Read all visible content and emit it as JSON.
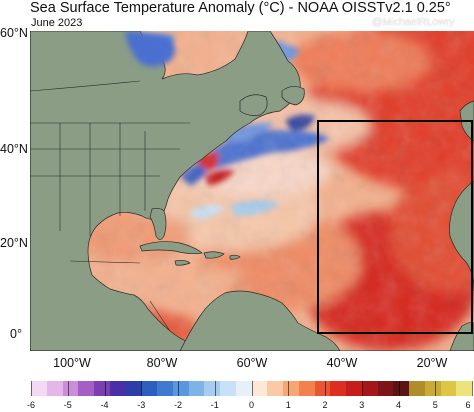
{
  "title": "Sea Surface Temperature Anomaly (°C) - NOAA OISSTv2.1 0.25°",
  "subtitle": "June 2023",
  "credit": "@MichaelRLowry",
  "lat_labels": [
    "60°N",
    "40°N",
    "20°N",
    "0°"
  ],
  "lon_labels": [
    "100°W",
    "80°W",
    "60°W",
    "40°W",
    "20°W"
  ],
  "colorbar": {
    "labels": [
      "-6",
      "-5",
      "-4",
      "-3",
      "-2",
      "-1",
      "0",
      "1",
      "2",
      "3",
      "4",
      "5",
      "6"
    ],
    "colors": [
      "#f3d9f3",
      "#e4b6ea",
      "#cc8ed9",
      "#a55fc4",
      "#7a3fb0",
      "#4a2fa6",
      "#2c3fa8",
      "#2f5ec1",
      "#3f79d0",
      "#5b97dc",
      "#7eb3e6",
      "#a6cdef",
      "#c9e1f6",
      "#e6f0fa",
      "#fde8d6",
      "#fbc9a3",
      "#f7a775",
      "#f28150",
      "#ea5633",
      "#dc2f22",
      "#c51d1a",
      "#a5161a",
      "#7d1417",
      "#5c1314",
      "#b08c2a",
      "#c9aa34",
      "#ddc646",
      "#ece47a"
    ]
  },
  "highlight_box": {
    "label": "",
    "lon_west": -46,
    "lon_east": -10,
    "lat_south": 1,
    "lat_north": 45
  },
  "colors": {
    "land": "#8c9d86",
    "border": "#222222",
    "ocean_warm": "#e8573b",
    "ocean_cold": "#3b5fc4"
  }
}
